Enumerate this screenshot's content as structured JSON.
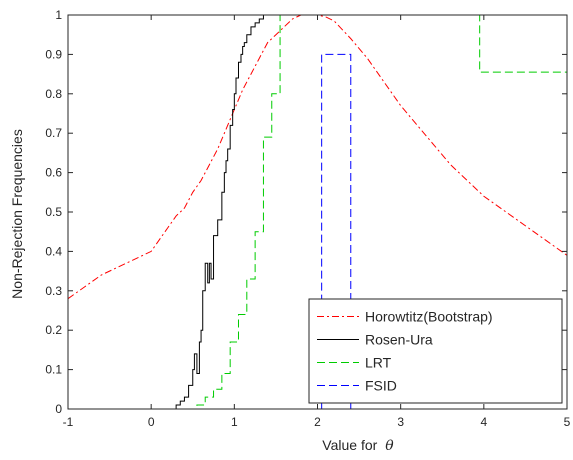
{
  "chart_data": {
    "type": "line",
    "title": "",
    "xlabel": "Value for",
    "xlabel_symbol": "θ",
    "ylabel": "Non-Rejection Frequencies",
    "xlim": [
      -1,
      5
    ],
    "ylim": [
      0,
      1
    ],
    "grid": false,
    "legend_position": "bottom-right",
    "xticks": [
      "-1",
      "0",
      "1",
      "2",
      "3",
      "4",
      "5"
    ],
    "yticks": [
      "0",
      "0.1",
      "0.2",
      "0.3",
      "0.4",
      "0.5",
      "0.6",
      "0.7",
      "0.8",
      "0.9",
      "1"
    ],
    "series": [
      {
        "name": "Horowtitz(Bootstrap)",
        "color": "#ff0000",
        "style": "dash-dot",
        "step": false,
        "x": [
          -1,
          -0.8,
          -0.6,
          -0.4,
          -0.2,
          0,
          0.1,
          0.2,
          0.3,
          0.4,
          0.5,
          0.6,
          0.7,
          0.8,
          0.9,
          1.0,
          1.1,
          1.2,
          1.3,
          1.4,
          1.5,
          1.6,
          1.7,
          1.8,
          1.9,
          2.0,
          2.1,
          2.2,
          2.4,
          2.6,
          2.8,
          3.0,
          3.2,
          3.4,
          3.6,
          3.8,
          4.0,
          4.2,
          4.4,
          4.6,
          4.8,
          5.0
        ],
        "y": [
          0.28,
          0.31,
          0.34,
          0.36,
          0.38,
          0.4,
          0.43,
          0.46,
          0.49,
          0.51,
          0.55,
          0.58,
          0.62,
          0.66,
          0.71,
          0.76,
          0.81,
          0.85,
          0.89,
          0.93,
          0.95,
          0.97,
          0.99,
          1.0,
          1.0,
          1.0,
          0.995,
          0.985,
          0.94,
          0.89,
          0.83,
          0.77,
          0.72,
          0.67,
          0.62,
          0.58,
          0.54,
          0.51,
          0.48,
          0.45,
          0.42,
          0.39
        ]
      },
      {
        "name": "Rosen-Ura",
        "color": "#000000",
        "style": "solid",
        "step": true,
        "x": [
          -1,
          0.3,
          0.35,
          0.4,
          0.45,
          0.5,
          0.52,
          0.55,
          0.58,
          0.6,
          0.62,
          0.65,
          0.68,
          0.7,
          0.72,
          0.75,
          0.8,
          0.85,
          0.88,
          0.9,
          0.92,
          0.95,
          0.98,
          1.0,
          1.02,
          1.05,
          1.08,
          1.1,
          1.12,
          1.15,
          1.2,
          1.25,
          1.3,
          1.35,
          1.4,
          5.0
        ],
        "y": [
          0,
          0.01,
          0.02,
          0.03,
          0.06,
          0.1,
          0.14,
          0.09,
          0.17,
          0.2,
          0.3,
          0.37,
          0.32,
          0.37,
          0.33,
          0.44,
          0.48,
          0.55,
          0.6,
          0.63,
          0.66,
          0.72,
          0.76,
          0.8,
          0.84,
          0.88,
          0.9,
          0.92,
          0.93,
          0.95,
          0.97,
          0.98,
          0.99,
          1.0,
          1.0,
          1.0
        ]
      },
      {
        "name": "LRT",
        "color": "#00cc00",
        "style": "dashed",
        "step": true,
        "x": [
          -1,
          0.55,
          0.65,
          0.75,
          0.85,
          0.95,
          1.05,
          1.15,
          1.25,
          1.35,
          1.45,
          1.55,
          3.95,
          5.0
        ],
        "y": [
          0,
          0.01,
          0.03,
          0.05,
          0.09,
          0.17,
          0.24,
          0.33,
          0.45,
          0.69,
          0.8,
          1.0,
          0.855,
          0.855
        ]
      },
      {
        "name": "FSID",
        "color": "#0000ff",
        "style": "dashed",
        "step": true,
        "x": [
          -1,
          2.05,
          2.4,
          5.0
        ],
        "y": [
          0,
          0.9,
          0,
          0
        ]
      }
    ]
  }
}
